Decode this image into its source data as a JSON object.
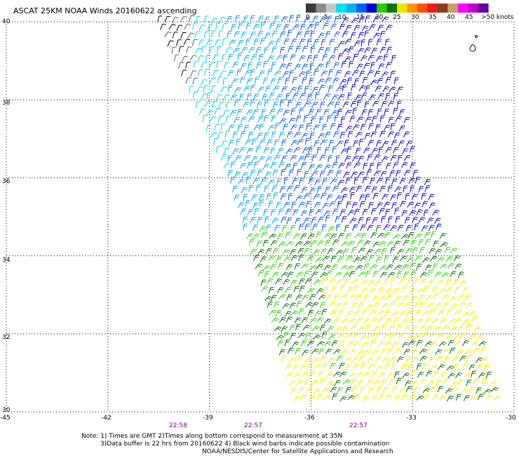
{
  "title": "ASCAT 25KM NOAA Winds 20160622 ascending",
  "legend": {
    "colors": [
      "#3a3a3a",
      "#8c8c8c",
      "#c8c8c8",
      "#00e0f0",
      "#00b4f0",
      "#0064f5",
      "#0000d2",
      "#32c800",
      "#007800",
      "#e6e600",
      "#ff9600",
      "#ff5000",
      "#e61e1e",
      "#8c3c1e",
      "#c8a064",
      "#ff00ff",
      "#c800c8",
      "#6400a0"
    ],
    "labels": [
      "0",
      "5",
      "10",
      "15",
      "20",
      "25",
      "30",
      "35",
      "40",
      "45",
      ">50 knots"
    ]
  },
  "axes": {
    "lat_labels": [
      "40",
      "38",
      "36",
      "34",
      "32",
      "30"
    ],
    "lon_labels": [
      "-45",
      "-42",
      "-39",
      "-36",
      "-33",
      "-30"
    ],
    "lat_range": [
      30,
      40
    ],
    "lon_range": [
      -45,
      -30
    ],
    "grid": "dotted"
  },
  "times": [
    "22:58",
    "22:57",
    "22:57"
  ],
  "notes": {
    "line1": "Note: 1) Times are GMT 2)Times along bottom correspond to measurement at 35N",
    "line2": "3)Data buffer is 22 hrs from 20160622 4) Black wind barbs indicate possible contamination",
    "line3": "NOAA/NESDIS/Center for Satellite Applications and Research"
  },
  "swath": {
    "description_speeds": "wind barbs colored by speed: black/gray at NW edge, cyan and blue in north, green in middle, yellow and dark green in south",
    "colors": {
      "black": "#000000",
      "gray": "#5a5a5a",
      "cyan": "#00d2e6",
      "lightblue": "#00a0f0",
      "blue": "#0050f0",
      "navy": "#0000c8",
      "green": "#28d200",
      "darkgreen": "#006400",
      "yellow": "#f0f000"
    }
  }
}
